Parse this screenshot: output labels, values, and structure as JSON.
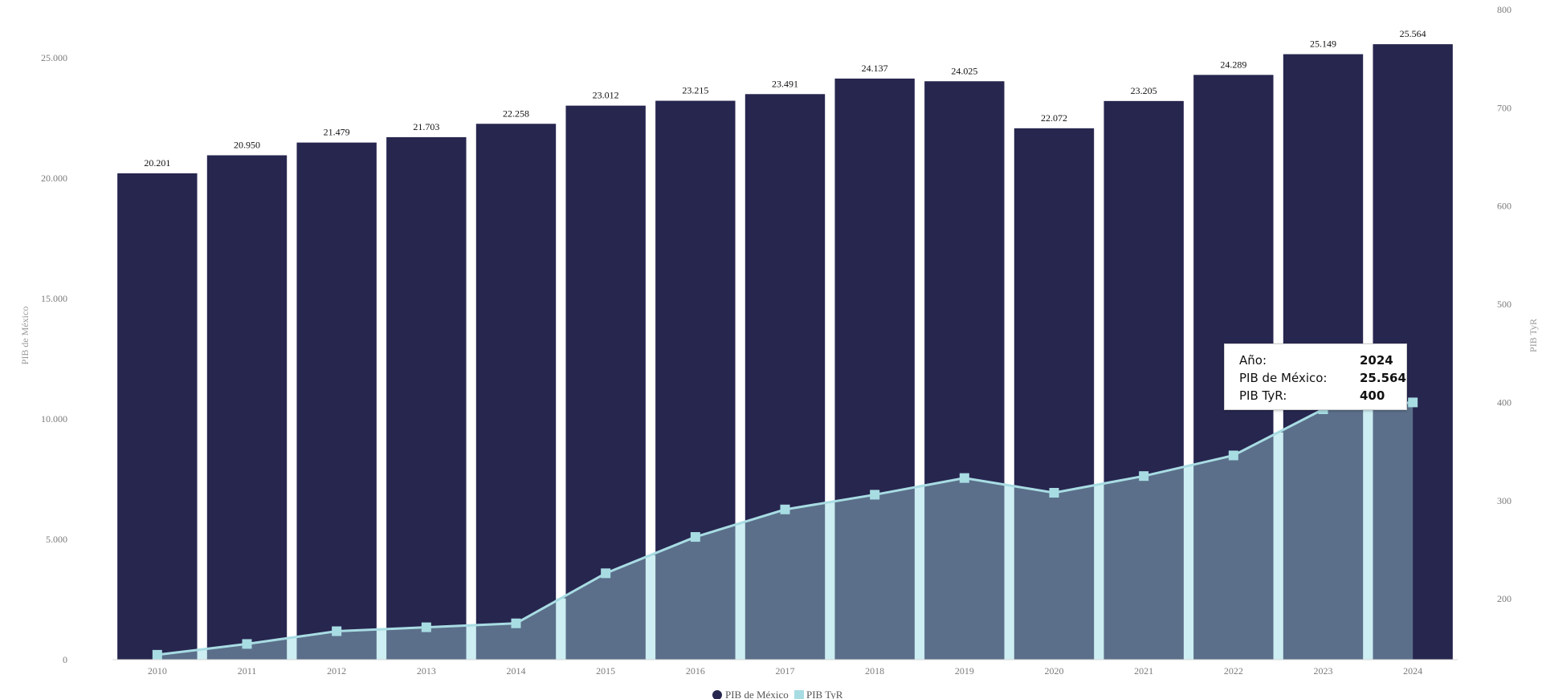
{
  "chart_data": {
    "type": "bar",
    "categories": [
      "2010",
      "2011",
      "2012",
      "2013",
      "2014",
      "2015",
      "2016",
      "2017",
      "2018",
      "2019",
      "2020",
      "2021",
      "2022",
      "2023",
      "2024"
    ],
    "series": [
      {
        "name": "PIB de México",
        "type": "bar",
        "axis": "left",
        "color": "#27264f",
        "values": [
          20201,
          20950,
          21479,
          21703,
          22258,
          23012,
          23215,
          23491,
          24137,
          24025,
          22072,
          23205,
          24289,
          25149,
          25564
        ],
        "labels": [
          "20.201",
          "20.950",
          "21.479",
          "21.703",
          "22.258",
          "23.012",
          "23.215",
          "23.491",
          "24.137",
          "24.025",
          "22.072",
          "23.205",
          "24.289",
          "25.149",
          "25.564"
        ]
      },
      {
        "name": "PIB TyR",
        "type": "area",
        "axis": "right",
        "color": "#a8dce3",
        "fill": "#5b6f8a",
        "values": [
          143,
          154,
          167,
          171,
          175,
          226,
          263,
          291,
          306,
          323,
          308,
          325,
          346,
          393,
          400
        ]
      }
    ],
    "y_left": {
      "label": "PIB de México",
      "ylim": [
        0,
        27000
      ],
      "ticks": [
        0,
        5000,
        10000,
        15000,
        20000,
        25000
      ],
      "tick_labels": [
        "0",
        "5.000",
        "10.000",
        "15.000",
        "20.000",
        "25.000"
      ]
    },
    "y_right": {
      "label": "PIB TyR",
      "ylim": [
        138,
        800
      ],
      "ticks": [
        200,
        300,
        400,
        500,
        600,
        700,
        800
      ],
      "tick_labels": [
        "200",
        "300",
        "400",
        "500",
        "600",
        "700",
        "800"
      ]
    },
    "grid": false,
    "legend": {
      "position": "bottom-center",
      "items": [
        "PIB de México",
        "PIB TyR"
      ]
    }
  },
  "tooltip": {
    "year_key": "Año:",
    "year_value": "2024",
    "pib_key": "PIB de México:",
    "pib_value": "25.564",
    "tyr_key": "PIB TyR:",
    "tyr_value": "400"
  }
}
